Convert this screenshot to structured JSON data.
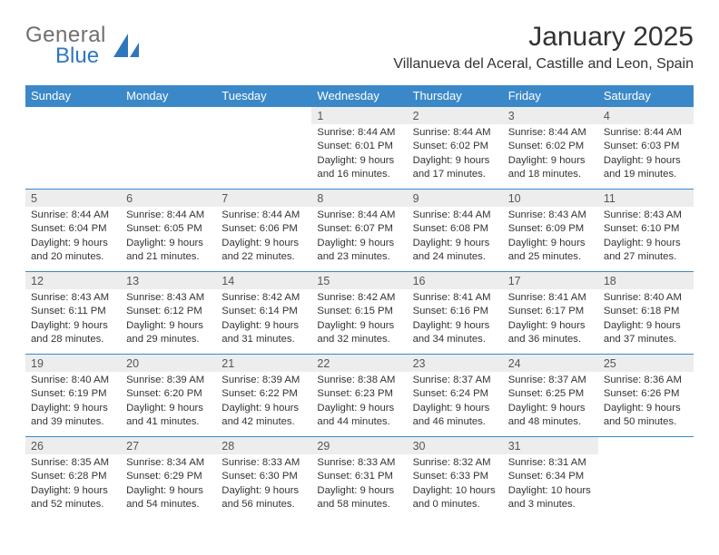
{
  "logo": {
    "general": "General",
    "blue": "Blue"
  },
  "title": "January 2025",
  "location": "Villanueva del Aceral, Castille and Leon, Spain",
  "day_headers": [
    "Sunday",
    "Monday",
    "Tuesday",
    "Wednesday",
    "Thursday",
    "Friday",
    "Saturday"
  ],
  "colors": {
    "header_bg": "#3b88c9",
    "header_text": "#ffffff",
    "daynum_bg": "#ededed",
    "border": "#3b88c9",
    "body_text": "#333333",
    "logo_gray": "#6f6f6f",
    "logo_blue": "#2f77bd"
  },
  "weeks": [
    [
      null,
      null,
      null,
      {
        "n": "1",
        "sunrise": "Sunrise: 8:44 AM",
        "sunset": "Sunset: 6:01 PM",
        "d1": "Daylight: 9 hours",
        "d2": "and 16 minutes."
      },
      {
        "n": "2",
        "sunrise": "Sunrise: 8:44 AM",
        "sunset": "Sunset: 6:02 PM",
        "d1": "Daylight: 9 hours",
        "d2": "and 17 minutes."
      },
      {
        "n": "3",
        "sunrise": "Sunrise: 8:44 AM",
        "sunset": "Sunset: 6:02 PM",
        "d1": "Daylight: 9 hours",
        "d2": "and 18 minutes."
      },
      {
        "n": "4",
        "sunrise": "Sunrise: 8:44 AM",
        "sunset": "Sunset: 6:03 PM",
        "d1": "Daylight: 9 hours",
        "d2": "and 19 minutes."
      }
    ],
    [
      {
        "n": "5",
        "sunrise": "Sunrise: 8:44 AM",
        "sunset": "Sunset: 6:04 PM",
        "d1": "Daylight: 9 hours",
        "d2": "and 20 minutes."
      },
      {
        "n": "6",
        "sunrise": "Sunrise: 8:44 AM",
        "sunset": "Sunset: 6:05 PM",
        "d1": "Daylight: 9 hours",
        "d2": "and 21 minutes."
      },
      {
        "n": "7",
        "sunrise": "Sunrise: 8:44 AM",
        "sunset": "Sunset: 6:06 PM",
        "d1": "Daylight: 9 hours",
        "d2": "and 22 minutes."
      },
      {
        "n": "8",
        "sunrise": "Sunrise: 8:44 AM",
        "sunset": "Sunset: 6:07 PM",
        "d1": "Daylight: 9 hours",
        "d2": "and 23 minutes."
      },
      {
        "n": "9",
        "sunrise": "Sunrise: 8:44 AM",
        "sunset": "Sunset: 6:08 PM",
        "d1": "Daylight: 9 hours",
        "d2": "and 24 minutes."
      },
      {
        "n": "10",
        "sunrise": "Sunrise: 8:43 AM",
        "sunset": "Sunset: 6:09 PM",
        "d1": "Daylight: 9 hours",
        "d2": "and 25 minutes."
      },
      {
        "n": "11",
        "sunrise": "Sunrise: 8:43 AM",
        "sunset": "Sunset: 6:10 PM",
        "d1": "Daylight: 9 hours",
        "d2": "and 27 minutes."
      }
    ],
    [
      {
        "n": "12",
        "sunrise": "Sunrise: 8:43 AM",
        "sunset": "Sunset: 6:11 PM",
        "d1": "Daylight: 9 hours",
        "d2": "and 28 minutes."
      },
      {
        "n": "13",
        "sunrise": "Sunrise: 8:43 AM",
        "sunset": "Sunset: 6:12 PM",
        "d1": "Daylight: 9 hours",
        "d2": "and 29 minutes."
      },
      {
        "n": "14",
        "sunrise": "Sunrise: 8:42 AM",
        "sunset": "Sunset: 6:14 PM",
        "d1": "Daylight: 9 hours",
        "d2": "and 31 minutes."
      },
      {
        "n": "15",
        "sunrise": "Sunrise: 8:42 AM",
        "sunset": "Sunset: 6:15 PM",
        "d1": "Daylight: 9 hours",
        "d2": "and 32 minutes."
      },
      {
        "n": "16",
        "sunrise": "Sunrise: 8:41 AM",
        "sunset": "Sunset: 6:16 PM",
        "d1": "Daylight: 9 hours",
        "d2": "and 34 minutes."
      },
      {
        "n": "17",
        "sunrise": "Sunrise: 8:41 AM",
        "sunset": "Sunset: 6:17 PM",
        "d1": "Daylight: 9 hours",
        "d2": "and 36 minutes."
      },
      {
        "n": "18",
        "sunrise": "Sunrise: 8:40 AM",
        "sunset": "Sunset: 6:18 PM",
        "d1": "Daylight: 9 hours",
        "d2": "and 37 minutes."
      }
    ],
    [
      {
        "n": "19",
        "sunrise": "Sunrise: 8:40 AM",
        "sunset": "Sunset: 6:19 PM",
        "d1": "Daylight: 9 hours",
        "d2": "and 39 minutes."
      },
      {
        "n": "20",
        "sunrise": "Sunrise: 8:39 AM",
        "sunset": "Sunset: 6:20 PM",
        "d1": "Daylight: 9 hours",
        "d2": "and 41 minutes."
      },
      {
        "n": "21",
        "sunrise": "Sunrise: 8:39 AM",
        "sunset": "Sunset: 6:22 PM",
        "d1": "Daylight: 9 hours",
        "d2": "and 42 minutes."
      },
      {
        "n": "22",
        "sunrise": "Sunrise: 8:38 AM",
        "sunset": "Sunset: 6:23 PM",
        "d1": "Daylight: 9 hours",
        "d2": "and 44 minutes."
      },
      {
        "n": "23",
        "sunrise": "Sunrise: 8:37 AM",
        "sunset": "Sunset: 6:24 PM",
        "d1": "Daylight: 9 hours",
        "d2": "and 46 minutes."
      },
      {
        "n": "24",
        "sunrise": "Sunrise: 8:37 AM",
        "sunset": "Sunset: 6:25 PM",
        "d1": "Daylight: 9 hours",
        "d2": "and 48 minutes."
      },
      {
        "n": "25",
        "sunrise": "Sunrise: 8:36 AM",
        "sunset": "Sunset: 6:26 PM",
        "d1": "Daylight: 9 hours",
        "d2": "and 50 minutes."
      }
    ],
    [
      {
        "n": "26",
        "sunrise": "Sunrise: 8:35 AM",
        "sunset": "Sunset: 6:28 PM",
        "d1": "Daylight: 9 hours",
        "d2": "and 52 minutes."
      },
      {
        "n": "27",
        "sunrise": "Sunrise: 8:34 AM",
        "sunset": "Sunset: 6:29 PM",
        "d1": "Daylight: 9 hours",
        "d2": "and 54 minutes."
      },
      {
        "n": "28",
        "sunrise": "Sunrise: 8:33 AM",
        "sunset": "Sunset: 6:30 PM",
        "d1": "Daylight: 9 hours",
        "d2": "and 56 minutes."
      },
      {
        "n": "29",
        "sunrise": "Sunrise: 8:33 AM",
        "sunset": "Sunset: 6:31 PM",
        "d1": "Daylight: 9 hours",
        "d2": "and 58 minutes."
      },
      {
        "n": "30",
        "sunrise": "Sunrise: 8:32 AM",
        "sunset": "Sunset: 6:33 PM",
        "d1": "Daylight: 10 hours",
        "d2": "and 0 minutes."
      },
      {
        "n": "31",
        "sunrise": "Sunrise: 8:31 AM",
        "sunset": "Sunset: 6:34 PM",
        "d1": "Daylight: 10 hours",
        "d2": "and 3 minutes."
      },
      null
    ]
  ]
}
